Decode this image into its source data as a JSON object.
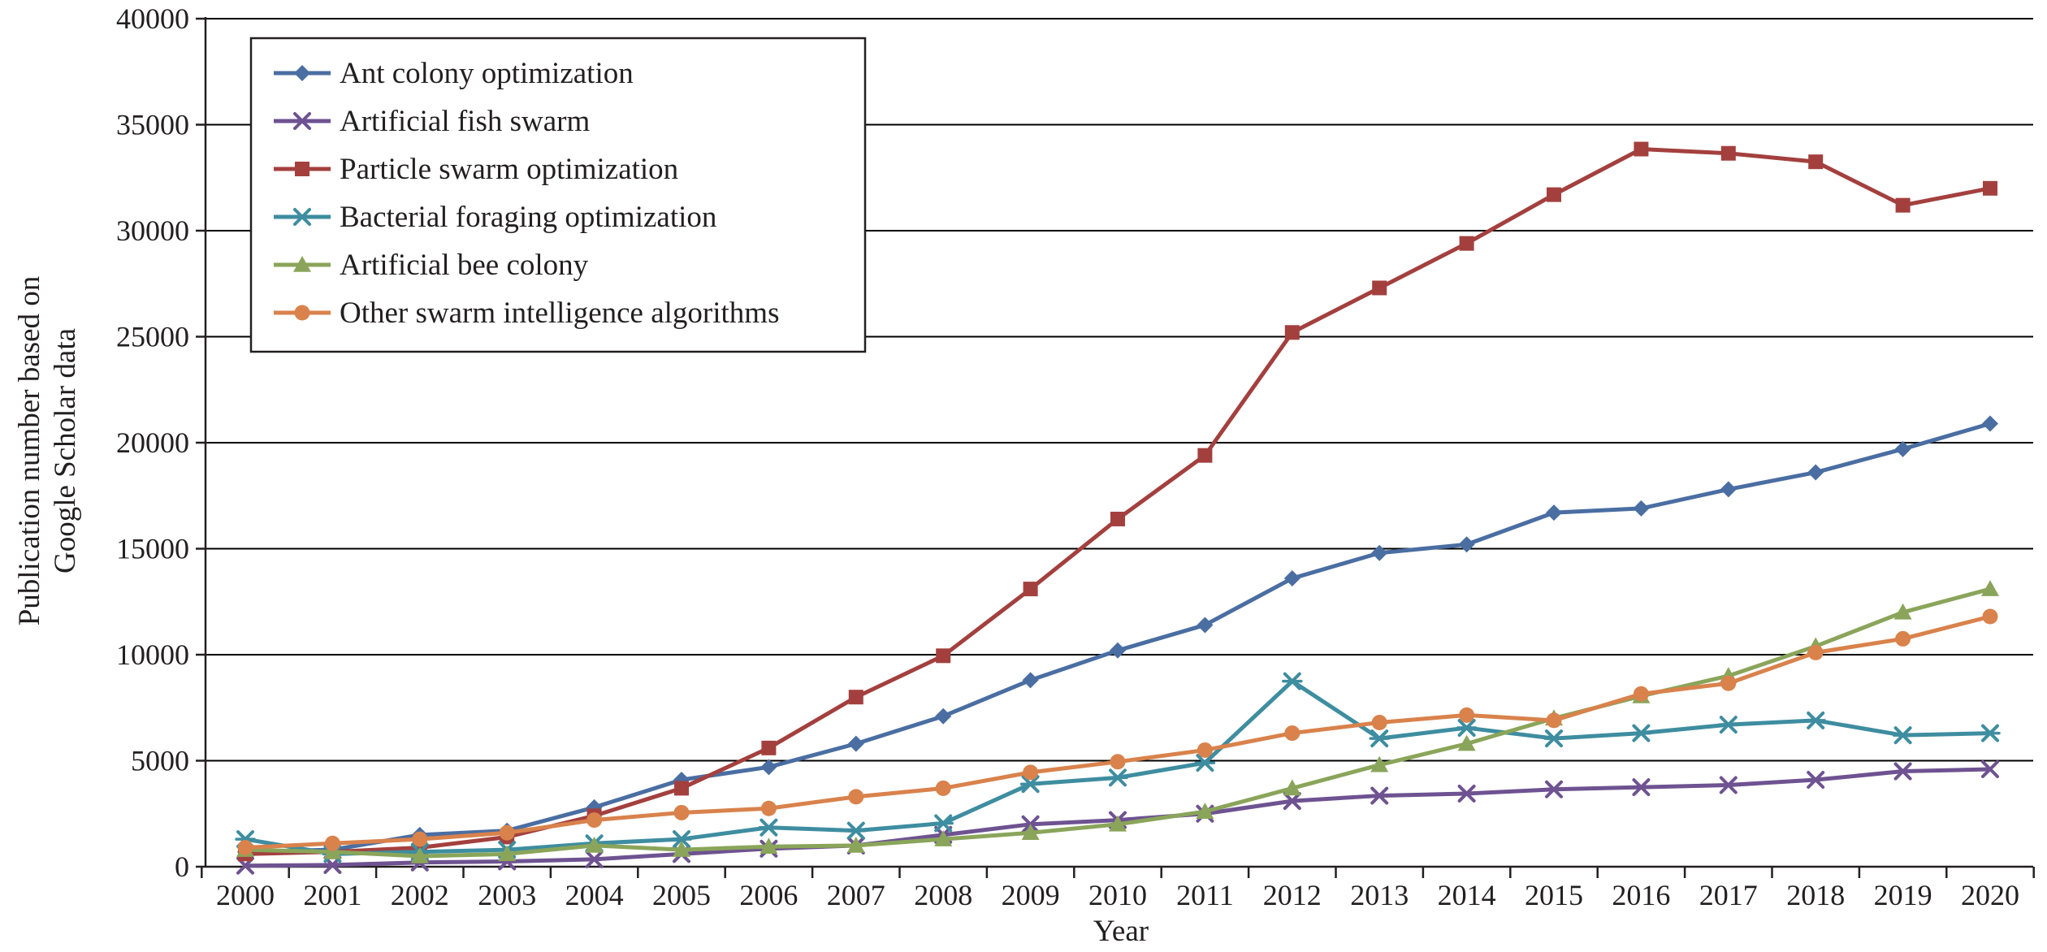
{
  "chart_data": {
    "type": "line",
    "title": "",
    "xlabel": "Year",
    "ylabel_lines": [
      "Publication number based on",
      "Google Scholar data"
    ],
    "x": [
      "2000",
      "2001",
      "2002",
      "2003",
      "2004",
      "2005",
      "2006",
      "2007",
      "2008",
      "2009",
      "2010",
      "2011",
      "2012",
      "2013",
      "2014",
      "2015",
      "2016",
      "2017",
      "2018",
      "2019",
      "2020"
    ],
    "ylim": [
      0,
      40000
    ],
    "yticks": [
      0,
      5000,
      10000,
      15000,
      20000,
      25000,
      30000,
      35000,
      40000
    ],
    "ytick_labels": [
      "0",
      "5000",
      "10000",
      "15000",
      "20000",
      "25000",
      "30000",
      "35000",
      "40000"
    ],
    "grid": "horizontal",
    "legend_position": "top-left",
    "series": [
      {
        "name": "Ant colony optimization",
        "color": "#4a6ea2",
        "marker": "diamond",
        "values": [
          700,
          800,
          1500,
          1700,
          2800,
          4100,
          4700,
          5800,
          7100,
          8800,
          10200,
          11400,
          13600,
          14800,
          15200,
          16700,
          16900,
          17800,
          18600,
          19700,
          20900
        ]
      },
      {
        "name": "Artificial fish swarm",
        "color": "#6e5291",
        "marker": "x",
        "values": [
          50,
          80,
          200,
          250,
          350,
          600,
          850,
          1000,
          1500,
          2000,
          2200,
          2500,
          3100,
          3350,
          3450,
          3650,
          3750,
          3850,
          4100,
          4500,
          4600
        ]
      },
      {
        "name": "Particle swarm optimization",
        "color": "#a3403e",
        "marker": "square",
        "values": [
          600,
          700,
          900,
          1400,
          2400,
          3700,
          5600,
          8000,
          9950,
          13100,
          16400,
          19400,
          25200,
          27300,
          29400,
          31700,
          33850,
          33650,
          33250,
          31200,
          32000
        ]
      },
      {
        "name": "Bacterial foraging optimization",
        "color": "#3e8da0",
        "marker": "asterisk",
        "values": [
          1300,
          600,
          700,
          800,
          1100,
          1300,
          1850,
          1700,
          2050,
          3900,
          4200,
          4900,
          8750,
          6050,
          6550,
          6050,
          6300,
          6700,
          6900,
          6200,
          6300
        ]
      },
      {
        "name": "Artificial bee colony",
        "color": "#8aa55a",
        "marker": "triangle",
        "values": [
          800,
          700,
          500,
          600,
          1000,
          800,
          950,
          1000,
          1300,
          1600,
          2000,
          2600,
          3700,
          4800,
          5800,
          7000,
          8050,
          9000,
          10400,
          12000,
          13100
        ]
      },
      {
        "name": "Other swarm intelligence algorithms",
        "color": "#d9824c",
        "marker": "circle",
        "values": [
          900,
          1100,
          1300,
          1600,
          2200,
          2550,
          2750,
          3300,
          3700,
          4450,
          4950,
          5500,
          6300,
          6800,
          7150,
          6900,
          8150,
          8650,
          10100,
          10750,
          11800
        ]
      }
    ]
  }
}
